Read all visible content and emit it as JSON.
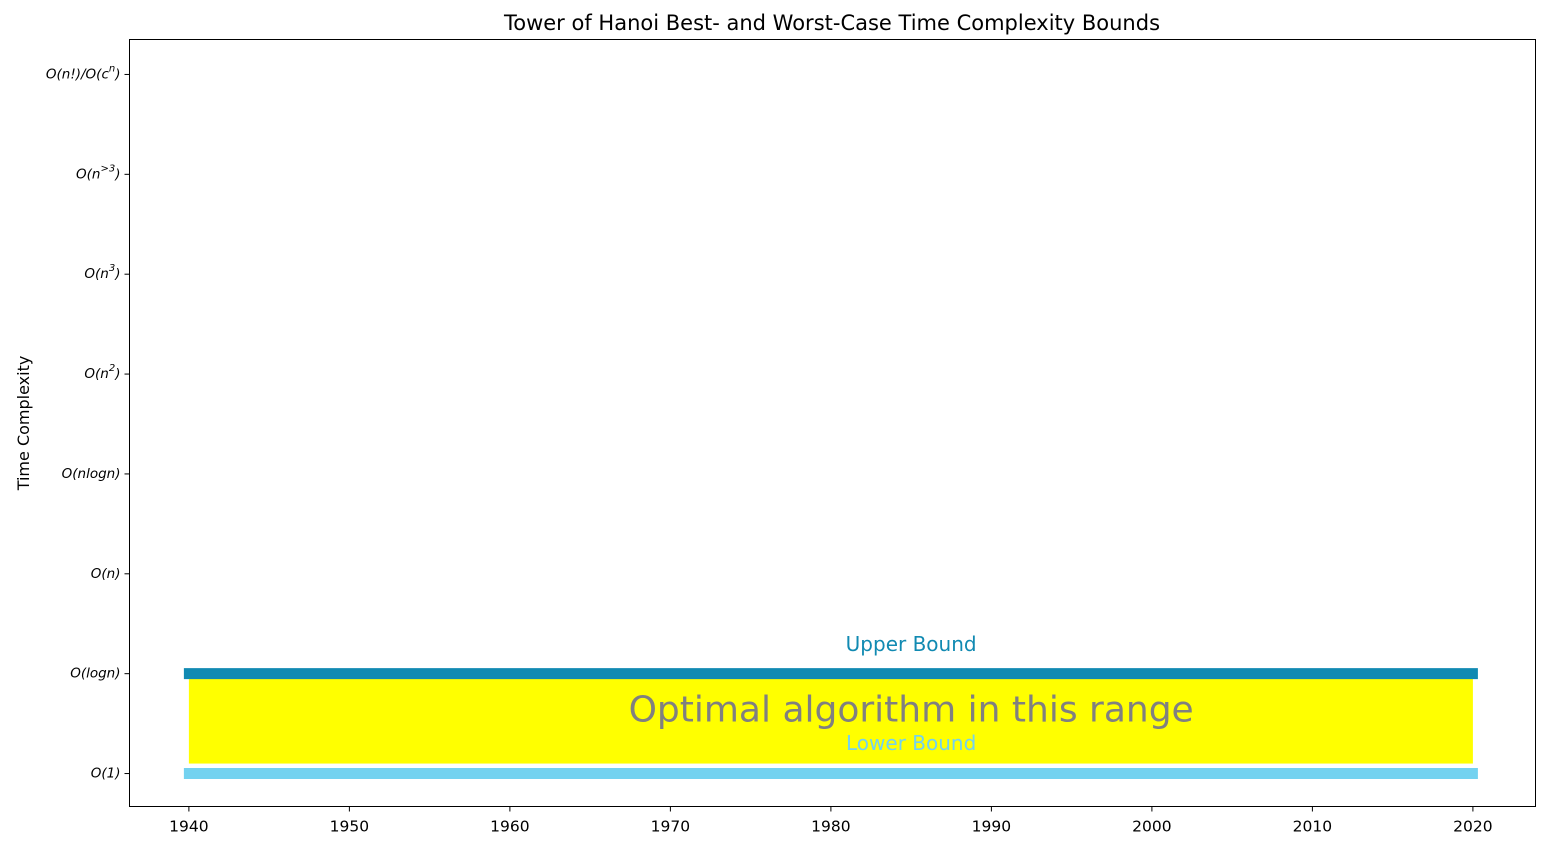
{
  "chart_data": {
    "type": "bar",
    "title": "Tower of Hanoi Best- and Worst-Case Time Complexity Bounds",
    "xlabel": "",
    "ylabel": "Time Complexity",
    "xlim": [
      1936.3,
      2023.9
    ],
    "ylim": [
      -0.33,
      7.35
    ],
    "x_ticks": [
      1940,
      1950,
      1960,
      1970,
      1980,
      1990,
      2000,
      2010,
      2020
    ],
    "y_ticks": [
      {
        "value": 0,
        "label": "O(1)"
      },
      {
        "value": 1,
        "label": "O(logn)"
      },
      {
        "value": 2,
        "label": "O(n)"
      },
      {
        "value": 3,
        "label": "O(nlogn)"
      },
      {
        "value": 4,
        "label": "O(n^2)"
      },
      {
        "value": 5,
        "label": "O(n^3)"
      },
      {
        "value": 6,
        "label": "O(n^>3)"
      },
      {
        "value": 7,
        "label": "O(n!)/O(c^n)"
      }
    ],
    "series": [
      {
        "name": "Upper Bound",
        "x_start": 1940,
        "x_end": 2020,
        "y": 1,
        "color": "#118ab2"
      },
      {
        "name": "Lower Bound",
        "x_start": 1940,
        "x_end": 2020,
        "y": 0,
        "color": "#73d2f0"
      }
    ],
    "region": {
      "label": "Optimal algorithm in this range",
      "x_start": 1940,
      "x_end": 2020,
      "y_low": 0.1,
      "y_high": 0.95,
      "color": "#ffff00",
      "text_color": "#808080"
    },
    "annotations": [
      {
        "text": "Upper Bound",
        "x": 1985,
        "y": 1.28,
        "color": "#118ab2"
      },
      {
        "text": "Lower Bound",
        "x": 1985,
        "y": 0.29,
        "color": "#73d2f0"
      },
      {
        "text": "Optimal algorithm in this range",
        "x": 1985,
        "y": 0.62,
        "color": "#808080"
      }
    ],
    "grid": false,
    "legend": "none"
  }
}
